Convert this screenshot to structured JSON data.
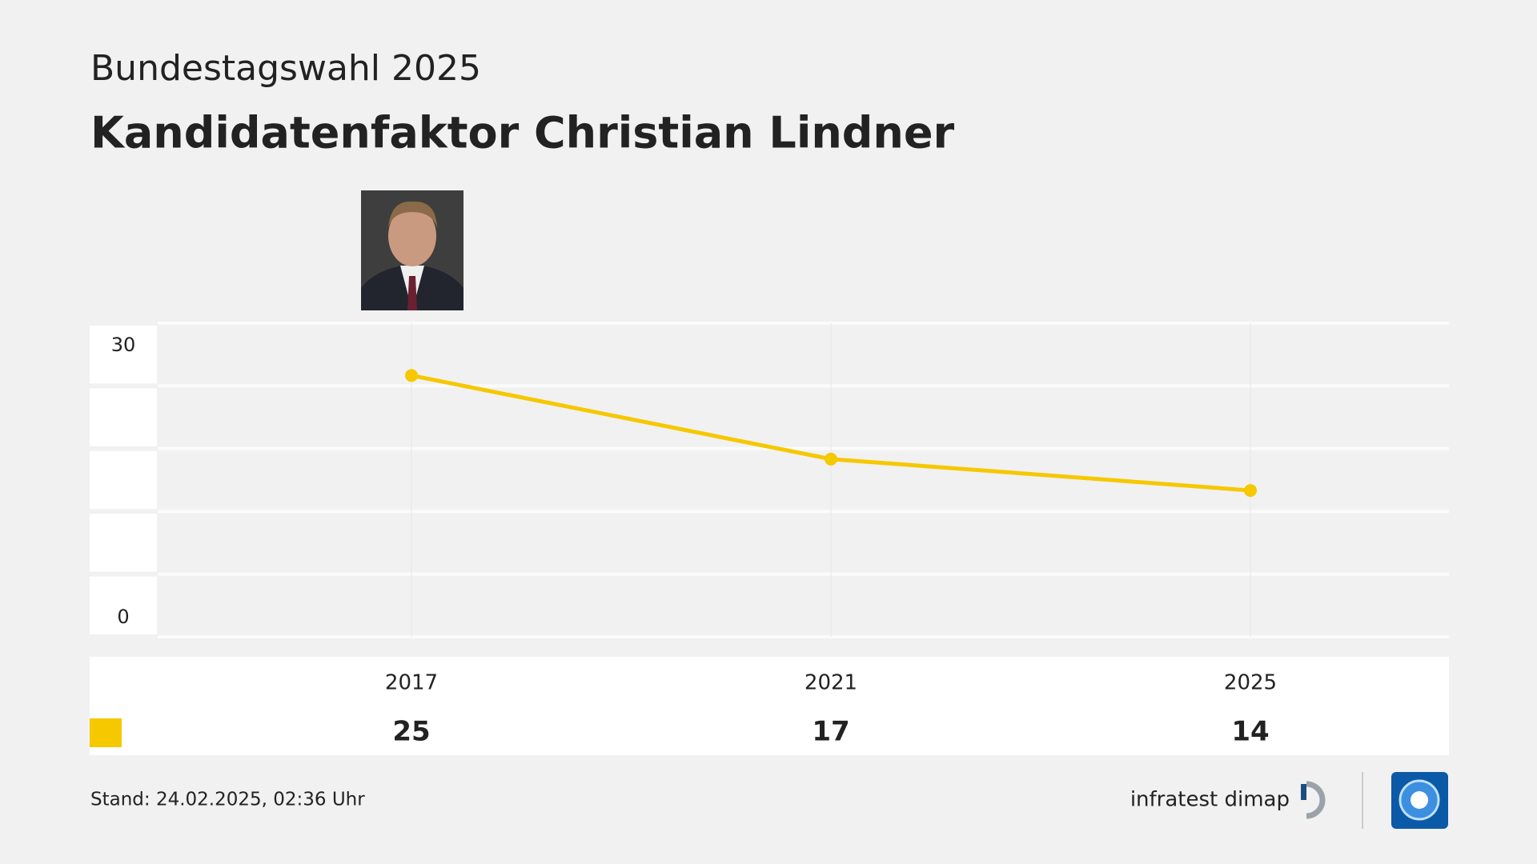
{
  "chart_data": {
    "type": "line",
    "subtitle": "Bundestagswahl 2025",
    "title": "Kandidatenfaktor Christian Lindner",
    "categories": [
      "2017",
      "2021",
      "2025"
    ],
    "series": [
      {
        "name": null,
        "color": "#f5c800",
        "values": [
          25,
          17,
          14
        ]
      }
    ],
    "ylim": [
      0,
      30
    ],
    "yticks": [
      0,
      30
    ],
    "ygrid": [
      0,
      6,
      12,
      18,
      24,
      30
    ],
    "grid": true
  },
  "footer": {
    "stand": "Stand:  24.02.2025, 02:36 Uhr",
    "source": "infratest dimap"
  }
}
